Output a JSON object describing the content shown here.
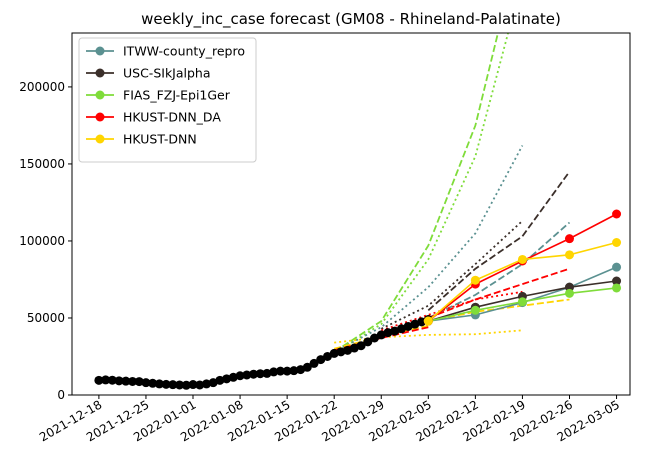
{
  "chart_data": {
    "type": "line",
    "title": "weekly_inc_case forecast (GM08 - Rhineland-Palatinate)",
    "xlabel": "",
    "ylabel": "",
    "x_range": [
      "2021-12-14",
      "2022-03-07"
    ],
    "ylim": [
      0,
      235000
    ],
    "yticks": [
      0,
      50000,
      100000,
      150000,
      200000
    ],
    "ytick_labels": [
      "0",
      "50000",
      "100000",
      "150000",
      "200000"
    ],
    "xticks": [
      "2021-12-18",
      "2021-12-25",
      "2022-01-01",
      "2022-01-08",
      "2022-01-15",
      "2022-01-22",
      "2022-01-29",
      "2022-02-05",
      "2022-02-12",
      "2022-02-19",
      "2022-02-26",
      "2022-03-05"
    ],
    "grid": false,
    "legend_position": "upper-left",
    "observed": {
      "color": "#000000",
      "points": [
        [
          "2021-12-18",
          9500
        ],
        [
          "2021-12-19",
          9800
        ],
        [
          "2021-12-20",
          9600
        ],
        [
          "2021-12-21",
          9200
        ],
        [
          "2021-12-22",
          9000
        ],
        [
          "2021-12-23",
          8800
        ],
        [
          "2021-12-24",
          8700
        ],
        [
          "2021-12-25",
          8000
        ],
        [
          "2021-12-26",
          7600
        ],
        [
          "2021-12-27",
          7200
        ],
        [
          "2021-12-28",
          6900
        ],
        [
          "2021-12-29",
          6700
        ],
        [
          "2021-12-30",
          6500
        ],
        [
          "2021-12-31",
          6300
        ],
        [
          "2022-01-01",
          6800
        ],
        [
          "2022-01-02",
          6500
        ],
        [
          "2022-01-03",
          7200
        ],
        [
          "2022-01-04",
          8000
        ],
        [
          "2022-01-05",
          9500
        ],
        [
          "2022-01-06",
          10500
        ],
        [
          "2022-01-07",
          11500
        ],
        [
          "2022-01-08",
          12500
        ],
        [
          "2022-01-09",
          13000
        ],
        [
          "2022-01-10",
          13500
        ],
        [
          "2022-01-11",
          13800
        ],
        [
          "2022-01-12",
          14000
        ],
        [
          "2022-01-13",
          15000
        ],
        [
          "2022-01-14",
          15500
        ],
        [
          "2022-01-15",
          15500
        ],
        [
          "2022-01-16",
          15800
        ],
        [
          "2022-01-17",
          16500
        ],
        [
          "2022-01-18",
          18000
        ],
        [
          "2022-01-19",
          20500
        ],
        [
          "2022-01-20",
          23000
        ],
        [
          "2022-01-21",
          25000
        ],
        [
          "2022-01-22",
          27000
        ],
        [
          "2022-01-23",
          28000
        ],
        [
          "2022-01-24",
          29000
        ],
        [
          "2022-01-25",
          30500
        ],
        [
          "2022-01-26",
          32000
        ],
        [
          "2022-01-27",
          34500
        ],
        [
          "2022-01-28",
          37000
        ],
        [
          "2022-01-29",
          39000
        ],
        [
          "2022-01-30",
          40500
        ],
        [
          "2022-01-31",
          41500
        ],
        [
          "2022-02-01",
          43000
        ],
        [
          "2022-02-02",
          44500
        ],
        [
          "2022-02-03",
          46000
        ],
        [
          "2022-02-04",
          47500
        ],
        [
          "2022-02-05",
          49000
        ]
      ]
    },
    "series": [
      {
        "name": "ITWW-county_repro",
        "color": "#5b9191",
        "points": [
          [
            "2022-02-05",
            48000
          ],
          [
            "2022-02-12",
            52000
          ],
          [
            "2022-02-19",
            60000
          ],
          [
            "2022-02-26",
            70000
          ],
          [
            "2022-03-05",
            83000
          ]
        ]
      },
      {
        "name": "USC-SIkJalpha",
        "color": "#3b2f2a",
        "points": [
          [
            "2022-02-05",
            48000
          ],
          [
            "2022-02-12",
            57000
          ],
          [
            "2022-02-19",
            64000
          ],
          [
            "2022-02-26",
            70000
          ],
          [
            "2022-03-05",
            74000
          ]
        ]
      },
      {
        "name": "FIAS_FZJ-Epi1Ger",
        "color": "#7fdc3a",
        "points": [
          [
            "2022-02-05",
            48000
          ],
          [
            "2022-02-12",
            55000
          ],
          [
            "2022-02-19",
            60500
          ],
          [
            "2022-02-26",
            66000
          ],
          [
            "2022-03-05",
            69500
          ]
        ]
      },
      {
        "name": "HKUST-DNN_DA",
        "color": "#ff0000",
        "points": [
          [
            "2022-02-05",
            48000
          ],
          [
            "2022-02-12",
            72000
          ],
          [
            "2022-02-19",
            87000
          ],
          [
            "2022-02-26",
            101500
          ],
          [
            "2022-03-05",
            117500
          ]
        ]
      },
      {
        "name": "HKUST-DNN",
        "color": "#ffd500",
        "points": [
          [
            "2022-02-05",
            48000
          ],
          [
            "2022-02-12",
            74500
          ],
          [
            "2022-02-19",
            88000
          ],
          [
            "2022-02-26",
            91000
          ],
          [
            "2022-03-05",
            99000
          ]
        ]
      }
    ],
    "forecast_lines": [
      {
        "color": "#7fdc3a",
        "style": "dashed",
        "points": [
          [
            "2022-01-22",
            28000
          ],
          [
            "2022-01-29",
            48000
          ],
          [
            "2022-02-05",
            97000
          ],
          [
            "2022-02-12",
            175000
          ],
          [
            "2022-02-19",
            300000
          ]
        ]
      },
      {
        "color": "#7fdc3a",
        "style": "dotted",
        "points": [
          [
            "2022-01-22",
            27000
          ],
          [
            "2022-01-29",
            46000
          ],
          [
            "2022-02-05",
            88000
          ],
          [
            "2022-02-12",
            155000
          ],
          [
            "2022-02-19",
            270000
          ]
        ]
      },
      {
        "color": "#5b9191",
        "style": "dotted",
        "points": [
          [
            "2022-01-22",
            28000
          ],
          [
            "2022-01-29",
            44000
          ],
          [
            "2022-02-05",
            70000
          ],
          [
            "2022-02-12",
            105000
          ],
          [
            "2022-02-19",
            162000
          ]
        ]
      },
      {
        "color": "#3b2f2a",
        "style": "dashed",
        "points": [
          [
            "2022-02-05",
            55000
          ],
          [
            "2022-02-12",
            82000
          ],
          [
            "2022-02-19",
            103000
          ],
          [
            "2022-02-26",
            145000
          ]
        ]
      },
      {
        "color": "#3b2f2a",
        "style": "dotted",
        "points": [
          [
            "2022-01-29",
            43000
          ],
          [
            "2022-02-05",
            58000
          ],
          [
            "2022-02-12",
            85000
          ],
          [
            "2022-02-19",
            113000
          ]
        ]
      },
      {
        "color": "#5b9191",
        "style": "dashed",
        "points": [
          [
            "2022-02-05",
            50000
          ],
          [
            "2022-02-12",
            65000
          ],
          [
            "2022-02-19",
            85000
          ],
          [
            "2022-02-26",
            112000
          ]
        ]
      },
      {
        "color": "#ff0000",
        "style": "dashed",
        "points": [
          [
            "2022-02-05",
            50000
          ],
          [
            "2022-02-12",
            62000
          ],
          [
            "2022-02-19",
            72000
          ],
          [
            "2022-02-26",
            82000
          ]
        ]
      },
      {
        "color": "#ff0000",
        "style": "dotted",
        "points": [
          [
            "2022-01-29",
            42000
          ],
          [
            "2022-02-05",
            52000
          ],
          [
            "2022-02-12",
            62000
          ],
          [
            "2022-02-19",
            67000
          ]
        ]
      },
      {
        "color": "#ffd500",
        "style": "dashed",
        "points": [
          [
            "2022-02-05",
            48000
          ],
          [
            "2022-02-12",
            54000
          ],
          [
            "2022-02-19",
            58000
          ],
          [
            "2022-02-26",
            62000
          ]
        ]
      },
      {
        "color": "#ffd500",
        "style": "dotted",
        "points": [
          [
            "2022-01-22",
            34000
          ],
          [
            "2022-01-29",
            37500
          ],
          [
            "2022-02-05",
            39000
          ],
          [
            "2022-02-12",
            39500
          ],
          [
            "2022-02-19",
            42000
          ]
        ]
      },
      {
        "color": "#ffd500",
        "style": "dashed",
        "points": [
          [
            "2022-01-22",
            30000
          ],
          [
            "2022-01-29",
            38000
          ],
          [
            "2022-02-05",
            45000
          ]
        ]
      },
      {
        "color": "#ff0000",
        "style": "dashed",
        "points": [
          [
            "2022-01-22",
            29000
          ],
          [
            "2022-01-29",
            37000
          ],
          [
            "2022-02-05",
            44000
          ]
        ]
      }
    ]
  }
}
